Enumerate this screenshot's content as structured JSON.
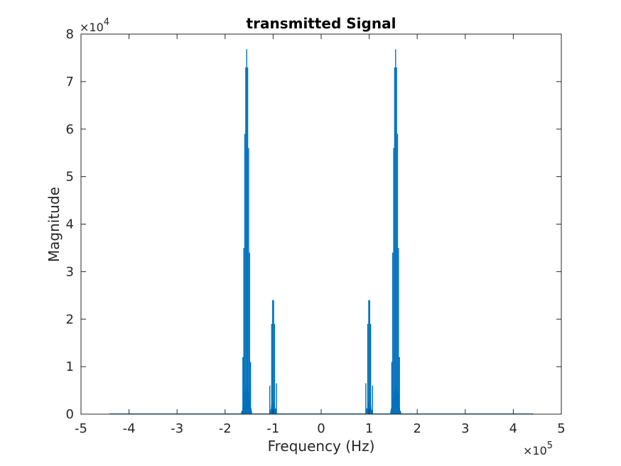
{
  "chart_data": {
    "type": "line",
    "title": "transmitted Signal",
    "xlabel": "Frequency (Hz)",
    "ylabel": "Magnitude",
    "x_scale_exponent": "×10^5",
    "y_scale_exponent": "×10^4",
    "xlim": [
      -500000,
      500000
    ],
    "ylim": [
      0,
      80000
    ],
    "xticks": [
      -500000,
      -400000,
      -300000,
      -200000,
      -100000,
      0,
      100000,
      200000,
      300000,
      400000,
      500000
    ],
    "xtick_labels": [
      "-5",
      "-4",
      "-3",
      "-2",
      "-1",
      "0",
      "1",
      "2",
      "3",
      "4",
      "5"
    ],
    "yticks": [
      0,
      10000,
      20000,
      30000,
      40000,
      50000,
      60000,
      70000,
      80000
    ],
    "ytick_labels": [
      "0",
      "1",
      "2",
      "3",
      "4",
      "5",
      "6",
      "7",
      "8"
    ],
    "grid": false,
    "line_color": "#0072BD",
    "data_range_x": [
      -441000,
      441000
    ],
    "series": [
      {
        "peaks": [
          {
            "x": -157000,
            "y": 73000
          },
          {
            "x": -155000,
            "y": 76800
          },
          {
            "x": -153000,
            "y": 73000
          },
          {
            "x": -159000,
            "y": 59000
          },
          {
            "x": -151000,
            "y": 56000
          },
          {
            "x": -161000,
            "y": 35000
          },
          {
            "x": -149000,
            "y": 34000
          },
          {
            "x": -163000,
            "y": 12000
          },
          {
            "x": -147000,
            "y": 11000
          },
          {
            "x": -101000,
            "y": 24000
          },
          {
            "x": -99000,
            "y": 24000
          },
          {
            "x": -103000,
            "y": 19000
          },
          {
            "x": -97000,
            "y": 19000
          },
          {
            "x": -107000,
            "y": 6000
          },
          {
            "x": -93000,
            "y": 6500
          },
          {
            "x": 97000,
            "y": 19000
          },
          {
            "x": 99000,
            "y": 24000
          },
          {
            "x": 101000,
            "y": 24000
          },
          {
            "x": 103000,
            "y": 19000
          },
          {
            "x": 93000,
            "y": 6500
          },
          {
            "x": 107000,
            "y": 6000
          },
          {
            "x": 147000,
            "y": 11000
          },
          {
            "x": 149000,
            "y": 34000
          },
          {
            "x": 151000,
            "y": 56000
          },
          {
            "x": 153000,
            "y": 73000
          },
          {
            "x": 155000,
            "y": 76800
          },
          {
            "x": 157000,
            "y": 73000
          },
          {
            "x": 159000,
            "y": 59000
          },
          {
            "x": 161000,
            "y": 35000
          },
          {
            "x": 163000,
            "y": 12000
          }
        ]
      }
    ]
  }
}
